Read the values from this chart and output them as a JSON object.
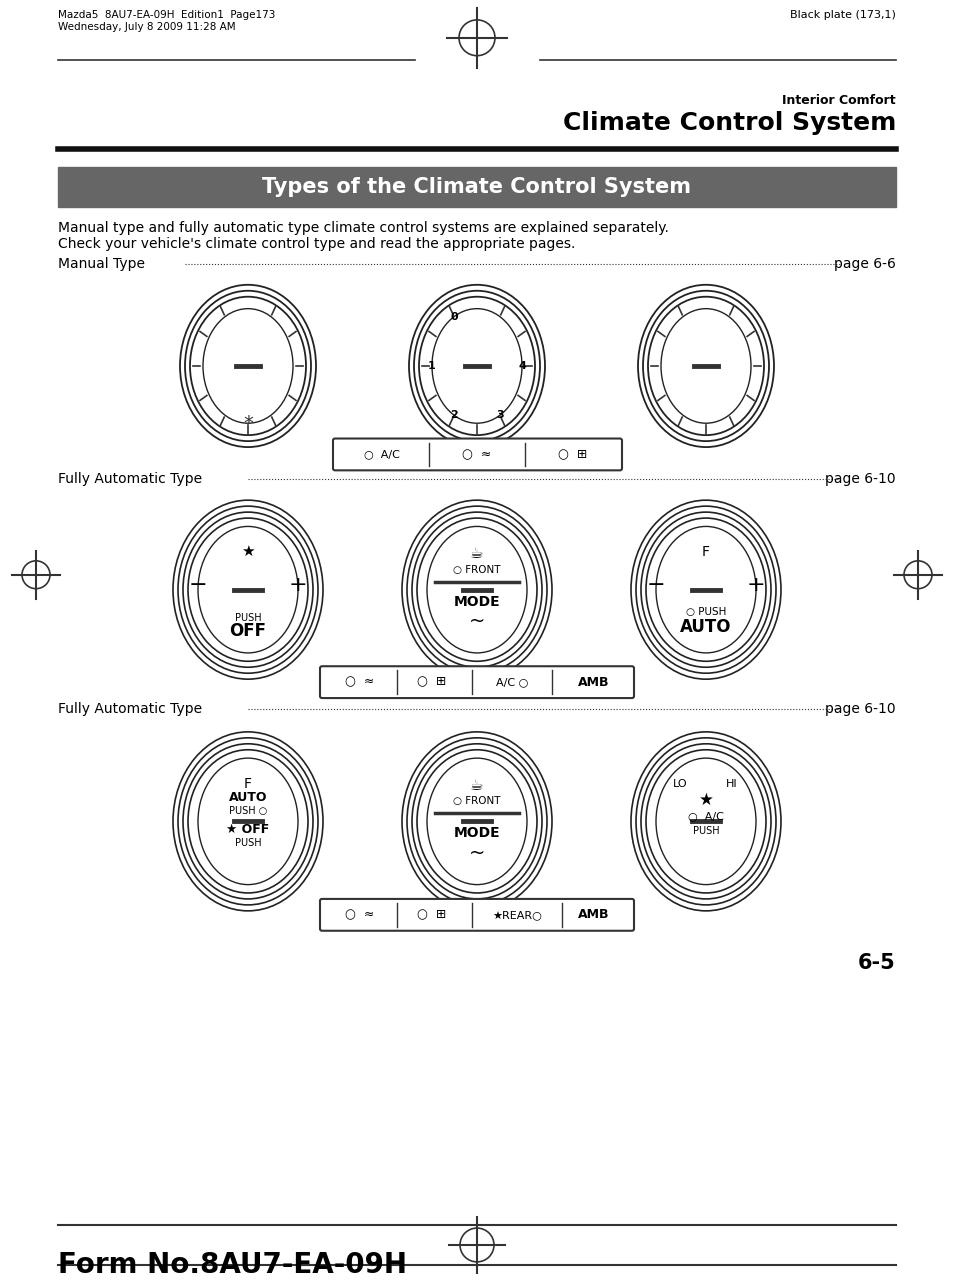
{
  "page_header_left": "Mazda5  8AU7-EA-09H  Edition1  Page173\nWednesday, July 8 2009 11:28 AM",
  "page_header_right": "Black plate (173,1)",
  "section_label": "Interior Comfort",
  "section_title": "Climate Control System",
  "box_title": "Types of the Climate Control System",
  "box_bg": "#666666",
  "box_text_color": "#ffffff",
  "para_line1": "Manual type and fully automatic type climate control systems are explained separately.",
  "para_line2": "Check your vehicle's climate control type and read the appropriate pages.",
  "manual_type_line": "Manual Type",
  "manual_type_page": "page 6-6",
  "fully_auto_line": "Fully Automatic Type",
  "fully_auto_page": "page 6-10",
  "page_number": "6-5",
  "footer_text": "Form No.8AU7-EA-09H",
  "bg_color": "#ffffff",
  "text_color": "#000000"
}
